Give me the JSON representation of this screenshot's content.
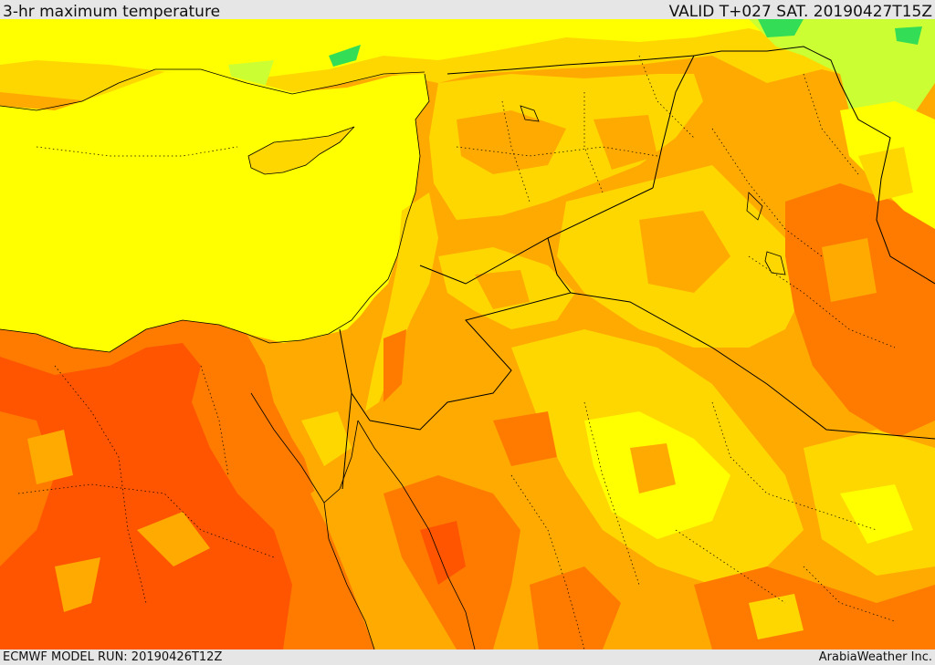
{
  "header": {
    "title": "3-hr maximum temperature",
    "valid": "VALID T+027 SAT. 20190427T15Z"
  },
  "footer": {
    "model_run": "ECMWF MODEL RUN: 20190426T12Z",
    "credit": "ArabiaWeather Inc."
  },
  "colors": {
    "sea_yellow": "#ffff00",
    "warm_gold": "#ffd700",
    "orange_light": "#ffaa00",
    "orange_dark": "#ff7b00",
    "red_orange": "#ff5500",
    "green_yellow": "#ccff33",
    "green": "#33dd55",
    "borders": "#000000"
  }
}
